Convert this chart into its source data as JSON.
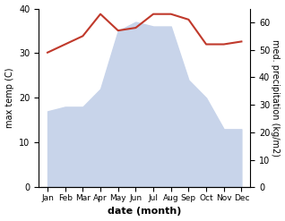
{
  "months": [
    "Jan",
    "Feb",
    "Mar",
    "Apr",
    "May",
    "Jun",
    "Jul",
    "Aug",
    "Sep",
    "Oct",
    "Nov",
    "Dec"
  ],
  "temperature": [
    17,
    18,
    18,
    22,
    35,
    37,
    36,
    36,
    24,
    20,
    13,
    13
  ],
  "precipitation": [
    49,
    52,
    55,
    63,
    57,
    58,
    63,
    63,
    61,
    52,
    52,
    53
  ],
  "temp_color": "#c0392b",
  "fill_color": "#c8d4ea",
  "fill_edge_color": "#aabbd4",
  "temp_ylim": [
    0,
    40
  ],
  "precip_ylim": [
    0,
    65
  ],
  "temp_yticks": [
    0,
    10,
    20,
    30,
    40
  ],
  "precip_yticks": [
    0,
    10,
    20,
    30,
    40,
    50,
    60
  ],
  "xlabel": "date (month)",
  "ylabel_left": "max temp (C)",
  "ylabel_right": "med. precipitation (kg/m2)",
  "fig_width": 3.18,
  "fig_height": 2.47,
  "dpi": 100
}
